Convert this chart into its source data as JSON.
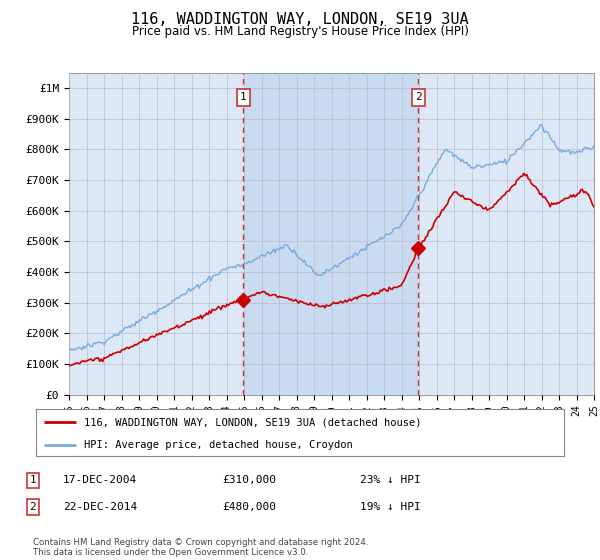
{
  "title": "116, WADDINGTON WAY, LONDON, SE19 3UA",
  "subtitle": "Price paid vs. HM Land Registry's House Price Index (HPI)",
  "ylabel_ticks": [
    "£0",
    "£100K",
    "£200K",
    "£300K",
    "£400K",
    "£500K",
    "£600K",
    "£700K",
    "£800K",
    "£900K",
    "£1M"
  ],
  "ytick_values": [
    0,
    100000,
    200000,
    300000,
    400000,
    500000,
    600000,
    700000,
    800000,
    900000,
    1000000
  ],
  "ylim": [
    0,
    1050000
  ],
  "x_start_year": 1995,
  "x_end_year": 2025,
  "hpi_color": "#7aaadd",
  "price_color": "#cc0000",
  "bg_color": "#dce8f5",
  "shade_color": "#c5d8f0",
  "grid_color": "#bbbbcc",
  "vline_color": "#cc3333",
  "sale1_date": "17-DEC-2004",
  "sale1_price": 310000,
  "sale1_label": "23% ↓ HPI",
  "sale1_year": 2004.96,
  "sale2_date": "22-DEC-2014",
  "sale2_price": 480000,
  "sale2_label": "19% ↓ HPI",
  "sale2_year": 2014.96,
  "legend_line1": "116, WADDINGTON WAY, LONDON, SE19 3UA (detached house)",
  "legend_line2": "HPI: Average price, detached house, Croydon",
  "footnote": "Contains HM Land Registry data © Crown copyright and database right 2024.\nThis data is licensed under the Open Government Licence v3.0."
}
